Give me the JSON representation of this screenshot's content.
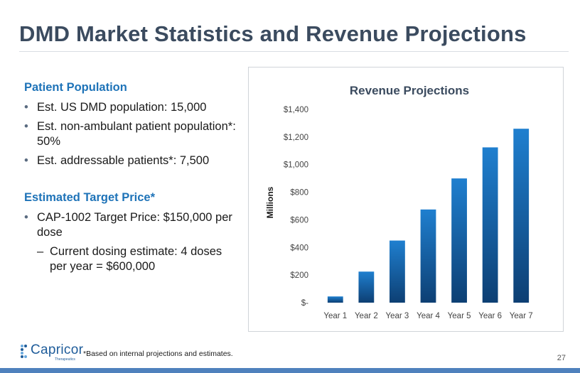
{
  "slide": {
    "title": "DMD Market Statistics and Revenue Projections",
    "page_number": "27",
    "footnote": "*Based on internal projections and estimates."
  },
  "patient_population": {
    "heading": "Patient Population",
    "bullets": [
      "Est. US DMD population: 15,000",
      "Est. non-ambulant patient population*: 50%",
      "Est. addressable patients*: 7,500"
    ]
  },
  "target_price": {
    "heading": "Estimated Target Price*",
    "bullet": "CAP-1002 Target Price: $150,000 per dose",
    "sub_bullet": "Current dosing estimate: 4 doses per year = $600,000"
  },
  "logo": {
    "name": "Capricor",
    "tagline": "Therapeutics"
  },
  "colors": {
    "title": "#3b4b5f",
    "heading": "#1e73b8",
    "bar_top": "#1f7fcf",
    "bar_bottom": "#0d3f73",
    "bottom_bar": "#4f81bd"
  },
  "chart_data": {
    "type": "bar",
    "title": "Revenue Projections",
    "ylabel": "Millions",
    "xlabel": "",
    "categories": [
      "Year 1",
      "Year 2",
      "Year 3",
      "Year 4",
      "Year 5",
      "Year 6",
      "Year 7"
    ],
    "values": [
      45,
      225,
      450,
      675,
      900,
      1125,
      1260
    ],
    "ylim": [
      0,
      1400
    ],
    "yticks": [
      0,
      200,
      400,
      600,
      800,
      1000,
      1200,
      1400
    ],
    "ytick_labels": [
      "$-",
      "$200",
      "$400",
      "$600",
      "$800",
      "$1,000",
      "$1,200",
      "$1,400"
    ],
    "grid": false,
    "legend": "none"
  }
}
